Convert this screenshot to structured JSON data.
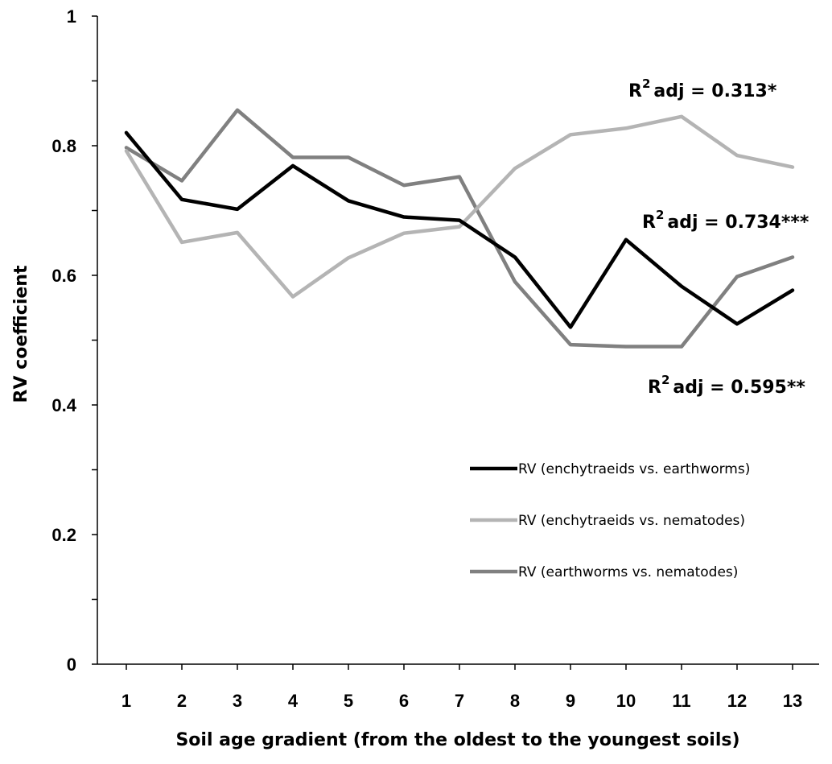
{
  "chart_data": {
    "type": "line",
    "xlabel": "Soil age gradient (from the oldest to the youngest soils)",
    "ylabel": "RV coefficient",
    "categories": [
      "1",
      "2",
      "3",
      "4",
      "5",
      "6",
      "7",
      "8",
      "9",
      "10",
      "11",
      "12",
      "13"
    ],
    "ylim": [
      0,
      1
    ],
    "yticks": [
      0,
      0.2,
      0.4,
      0.6,
      0.8,
      1
    ],
    "ytick_labels": [
      "0",
      "0.2",
      "0.4",
      "0.6",
      "0.8",
      "1"
    ],
    "grid": false,
    "legend_position": "right",
    "series": [
      {
        "name": "RV (enchytraeids vs. earthworms)",
        "color": "#000000",
        "values": [
          0.82,
          0.717,
          0.702,
          0.769,
          0.715,
          0.69,
          0.685,
          0.628,
          0.52,
          0.655,
          0.583,
          0.525,
          0.577
        ]
      },
      {
        "name": "RV (enchytraeids vs. nematodes)",
        "color": "#b4b4b4",
        "values": [
          0.792,
          0.651,
          0.666,
          0.567,
          0.627,
          0.665,
          0.675,
          0.765,
          0.817,
          0.827,
          0.845,
          0.785,
          0.767
        ]
      },
      {
        "name": "RV (earthworms vs. nematodes)",
        "color": "#808080",
        "values": [
          0.797,
          0.746,
          0.855,
          0.782,
          0.782,
          0.739,
          0.752,
          0.59,
          0.493,
          0.49,
          0.49,
          0.598,
          0.628
        ]
      }
    ],
    "annotations": [
      {
        "base": "R",
        "sup": "2",
        "rest": "adj = 0.313*"
      },
      {
        "base": "R",
        "sup": "2",
        "rest": "adj = 0.734***"
      },
      {
        "base": "R",
        "sup": "2",
        "rest": "adj = 0.595**"
      }
    ]
  }
}
